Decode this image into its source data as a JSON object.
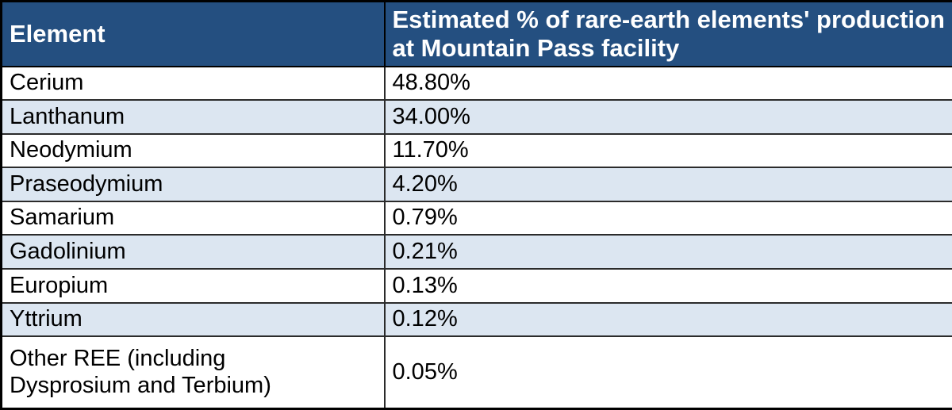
{
  "header": {
    "element_label": "Element",
    "estimate_label": "Estimated % of rare-earth elements' production at Mountain Pass facility"
  },
  "rows": [
    {
      "element": "Cerium",
      "value": "48.80%"
    },
    {
      "element": "Lanthanum",
      "value": "34.00%"
    },
    {
      "element": "Neodymium",
      "value": "11.70%"
    },
    {
      "element": "Praseodymium",
      "value": "4.20%"
    },
    {
      "element": "Samarium",
      "value": "0.79%"
    },
    {
      "element": "Gadolinium",
      "value": "0.21%"
    },
    {
      "element": "Europium",
      "value": "0.13%"
    },
    {
      "element": "Yttrium",
      "value": "0.12%"
    },
    {
      "element": "Other REE (including\nDysprosium and Terbium)",
      "value": "0.05%"
    }
  ],
  "colors": {
    "header_bg": "#244f80",
    "header_text": "#ffffff",
    "stripe_bg": "#dce6f1",
    "row_bg": "#ffffff",
    "body_text": "#000000",
    "border": "#000000",
    "gridline": "#2b2b2b"
  },
  "chart_data": {
    "type": "table",
    "title": "Estimated % of rare-earth elements' production at Mountain Pass facility",
    "columns": [
      "Element",
      "Estimated % of rare-earth elements' production at Mountain Pass facility"
    ],
    "rows": [
      [
        "Cerium",
        "48.80%"
      ],
      [
        "Lanthanum",
        "34.00%"
      ],
      [
        "Neodymium",
        "11.70%"
      ],
      [
        "Praseodymium",
        "4.20%"
      ],
      [
        "Samarium",
        "0.79%"
      ],
      [
        "Gadolinium",
        "0.21%"
      ],
      [
        "Europium",
        "0.13%"
      ],
      [
        "Yttrium",
        "0.12%"
      ],
      [
        "Other REE (including Dysprosium and Terbium)",
        "0.05%"
      ]
    ],
    "values_percent": [
      48.8,
      34.0,
      11.7,
      4.2,
      0.79,
      0.21,
      0.13,
      0.12,
      0.05
    ],
    "legend_position": "none",
    "grid": true
  }
}
